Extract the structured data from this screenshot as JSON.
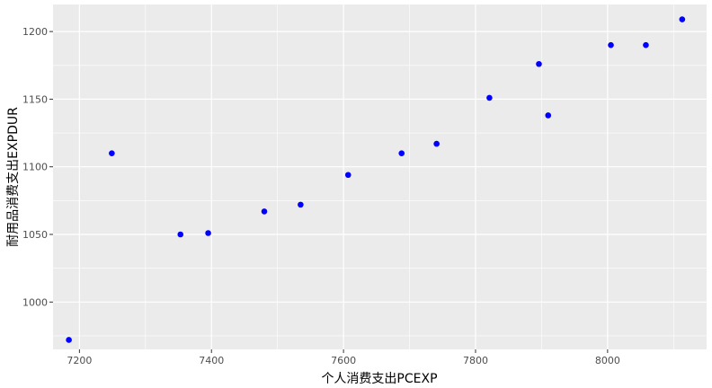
{
  "chart_data": {
    "type": "scatter",
    "xlabel": "个人消费支出PCEXP",
    "ylabel": "耐用品消费支出EXPDUR",
    "xlim": [
      7160,
      8150
    ],
    "ylim": [
      965,
      1220
    ],
    "x_ticks": [
      7200,
      7400,
      7600,
      7800,
      8000
    ],
    "y_ticks": [
      1000,
      1050,
      1100,
      1150,
      1200
    ],
    "x_tick_labels": [
      "7200",
      "7400",
      "7600",
      "7800",
      "8000"
    ],
    "y_tick_labels": [
      "1000",
      "1050",
      "1100",
      "1150",
      "1200"
    ],
    "grid": true,
    "point_color": "#0000ff",
    "panel_background": "#ebebeb",
    "grid_color": "#ffffff",
    "points": [
      {
        "x": 7184,
        "y": 972
      },
      {
        "x": 7249,
        "y": 1110
      },
      {
        "x": 7353,
        "y": 1050
      },
      {
        "x": 7395,
        "y": 1051
      },
      {
        "x": 7480,
        "y": 1067
      },
      {
        "x": 7535,
        "y": 1072
      },
      {
        "x": 7607,
        "y": 1094
      },
      {
        "x": 7688,
        "y": 1110
      },
      {
        "x": 7741,
        "y": 1117
      },
      {
        "x": 7821,
        "y": 1151
      },
      {
        "x": 7896,
        "y": 1176
      },
      {
        "x": 7910,
        "y": 1138
      },
      {
        "x": 8005,
        "y": 1190
      },
      {
        "x": 8058,
        "y": 1190
      },
      {
        "x": 8113,
        "y": 1209
      }
    ]
  }
}
